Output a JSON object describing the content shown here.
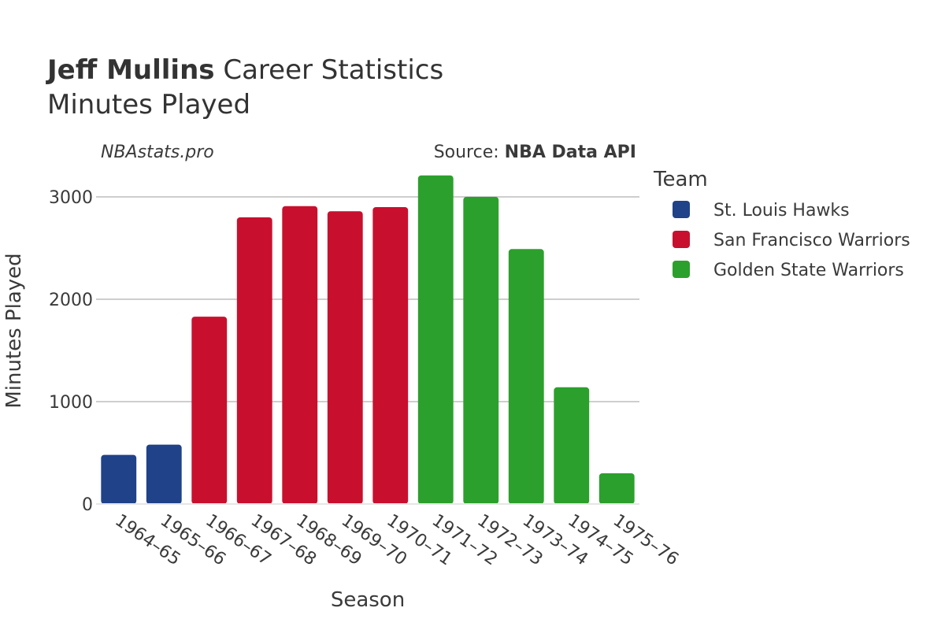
{
  "title": {
    "player": "Jeff Mullins",
    "rest": " Career Statistics",
    "subtitle": "Minutes Played"
  },
  "credits": {
    "site": "NBAstats.pro",
    "source_prefix": "Source: ",
    "source_name": "NBA Data API"
  },
  "legend": {
    "title": "Team",
    "placement": "right",
    "items": [
      {
        "name": "St. Louis Hawks",
        "color": "#1f4289"
      },
      {
        "name": "San Francisco Warriors",
        "color": "#c8102e"
      },
      {
        "name": "Golden State Warriors",
        "color": "#2ca02c"
      }
    ]
  },
  "chart_data": {
    "type": "bar",
    "xlabel": "Season",
    "ylabel": "Minutes Played",
    "ylim": [
      0,
      3400
    ],
    "yticks": [
      0,
      1000,
      2000,
      3000
    ],
    "grid": true,
    "categories": [
      "1964–65",
      "1965–66",
      "1966–67",
      "1967–68",
      "1968–69",
      "1969–70",
      "1970–71",
      "1971–72",
      "1972–73",
      "1973–74",
      "1974–75",
      "1975–76"
    ],
    "values": [
      480,
      580,
      1830,
      2800,
      2910,
      2860,
      2900,
      3210,
      3000,
      2490,
      1140,
      300
    ],
    "teams": [
      "St. Louis Hawks",
      "St. Louis Hawks",
      "San Francisco Warriors",
      "San Francisco Warriors",
      "San Francisco Warriors",
      "San Francisco Warriors",
      "San Francisco Warriors",
      "Golden State Warriors",
      "Golden State Warriors",
      "Golden State Warriors",
      "Golden State Warriors",
      "Golden State Warriors"
    ]
  }
}
